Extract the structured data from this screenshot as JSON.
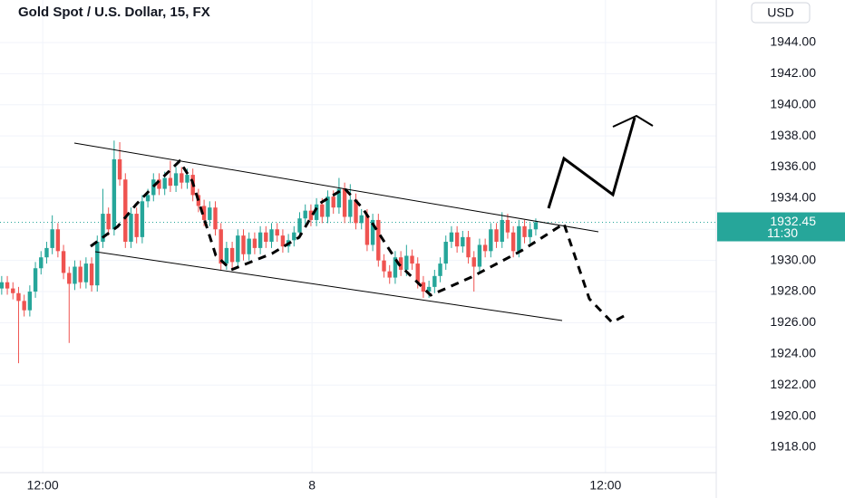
{
  "chart_data": {
    "type": "candlestick",
    "title": "Gold Spot / U.S. Dollar, 15, FX",
    "currency": "USD",
    "last_price_label": "1932.45",
    "countdown": "11:30",
    "up_color": "#26a69a",
    "down_color": "#ef5350",
    "open": [
      1928.2,
      1928.6,
      1928.2,
      1927.9,
      1927.4,
      1926.8,
      1928.0,
      1929.5,
      1930.2,
      1930.8,
      1932.0,
      1930.6,
      1929.2,
      1928.5,
      1929.6,
      1928.6,
      1929.8,
      1928.4,
      1931.2,
      1933.0,
      1932.0,
      1936.5,
      1935.2,
      1931.2,
      1933.0,
      1931.5,
      1933.8,
      1934.2,
      1935.2,
      1934.6,
      1935.3,
      1934.8,
      1935.6,
      1935.0,
      1935.5,
      1934.2,
      1933.5,
      1932.6,
      1933.4,
      1932.0,
      1929.8,
      1930.8,
      1929.9,
      1931.6,
      1930.4,
      1931.4,
      1930.8,
      1931.8,
      1931.2,
      1932.0,
      1931.6,
      1930.9,
      1931.3,
      1931.8,
      1932.7,
      1933.2,
      1932.6,
      1933.6,
      1932.8,
      1934.1,
      1933.4,
      1934.6,
      1932.8,
      1933.9,
      1932.4,
      1932.9,
      1931.0,
      1932.6,
      1930.0,
      1929.3,
      1928.9,
      1930.2,
      1929.4,
      1930.3,
      1929.8,
      1928.6,
      1928.0,
      1928.3,
      1929.0,
      1929.8,
      1931.2,
      1931.8,
      1930.9,
      1931.5,
      1930.2,
      1929.6,
      1931.0,
      1930.6,
      1932.0,
      1931.2,
      1932.6,
      1931.8,
      1930.6,
      1932.2,
      1931.5,
      1932.0
    ],
    "high": [
      1929.0,
      1929.0,
      1928.6,
      1928.3,
      1927.8,
      1928.4,
      1929.9,
      1930.6,
      1931.2,
      1932.9,
      1932.4,
      1931.0,
      1929.6,
      1930.0,
      1930.0,
      1930.2,
      1930.2,
      1931.6,
      1934.6,
      1933.4,
      1937.7,
      1937.6,
      1935.6,
      1933.4,
      1933.4,
      1934.2,
      1934.6,
      1935.6,
      1935.6,
      1935.7,
      1936.4,
      1936.0,
      1936.0,
      1935.9,
      1935.9,
      1934.6,
      1933.9,
      1933.8,
      1933.8,
      1932.4,
      1931.2,
      1931.2,
      1932.0,
      1932.0,
      1931.8,
      1931.8,
      1932.2,
      1932.2,
      1932.4,
      1932.4,
      1932.0,
      1931.7,
      1932.2,
      1933.1,
      1933.6,
      1933.6,
      1934.0,
      1934.0,
      1934.5,
      1934.5,
      1935.3,
      1935.0,
      1934.9,
      1934.3,
      1933.3,
      1933.3,
      1933.0,
      1933.0,
      1930.4,
      1929.7,
      1930.6,
      1930.6,
      1931.0,
      1930.7,
      1930.2,
      1929.0,
      1928.7,
      1929.4,
      1930.2,
      1931.6,
      1932.2,
      1932.2,
      1931.9,
      1931.9,
      1930.6,
      1931.4,
      1931.4,
      1932.4,
      1932.4,
      1933.1,
      1933.0,
      1932.2,
      1932.6,
      1932.6,
      1932.4,
      1932.7
    ],
    "low": [
      1927.8,
      1927.8,
      1927.5,
      1923.4,
      1926.4,
      1926.4,
      1927.6,
      1929.1,
      1929.8,
      1930.4,
      1930.2,
      1928.8,
      1924.7,
      1928.1,
      1928.2,
      1928.2,
      1928.0,
      1928.0,
      1930.8,
      1931.6,
      1931.6,
      1934.8,
      1930.8,
      1930.8,
      1931.1,
      1931.1,
      1933.4,
      1933.8,
      1934.2,
      1934.2,
      1934.4,
      1934.4,
      1934.6,
      1934.6,
      1933.8,
      1933.1,
      1932.2,
      1932.2,
      1931.6,
      1929.4,
      1929.4,
      1929.5,
      1929.5,
      1930.0,
      1930.0,
      1930.4,
      1930.4,
      1930.8,
      1930.8,
      1931.2,
      1930.5,
      1930.5,
      1930.9,
      1931.4,
      1932.3,
      1932.2,
      1932.2,
      1932.4,
      1932.4,
      1933.0,
      1933.0,
      1932.4,
      1932.4,
      1932.0,
      1932.0,
      1930.6,
      1930.6,
      1929.6,
      1928.9,
      1928.5,
      1928.5,
      1929.0,
      1929.0,
      1929.4,
      1928.2,
      1927.6,
      1927.6,
      1927.9,
      1928.6,
      1929.4,
      1930.8,
      1930.5,
      1930.5,
      1929.8,
      1928.0,
      1929.2,
      1930.2,
      1930.2,
      1930.8,
      1930.8,
      1931.4,
      1930.2,
      1930.2,
      1931.1,
      1931.1,
      1931.6
    ],
    "close": [
      1928.6,
      1928.2,
      1927.9,
      1927.4,
      1926.8,
      1928.0,
      1929.5,
      1930.2,
      1930.8,
      1932.0,
      1930.6,
      1929.2,
      1928.5,
      1929.6,
      1928.6,
      1929.8,
      1928.4,
      1931.2,
      1933.0,
      1932.0,
      1936.5,
      1935.2,
      1931.2,
      1933.0,
      1931.5,
      1933.8,
      1934.2,
      1935.2,
      1934.6,
      1935.3,
      1934.8,
      1935.6,
      1935.0,
      1935.5,
      1934.2,
      1933.5,
      1932.6,
      1933.4,
      1932.0,
      1929.8,
      1930.8,
      1929.9,
      1931.6,
      1930.4,
      1931.4,
      1930.8,
      1931.8,
      1931.2,
      1932.0,
      1931.6,
      1930.9,
      1931.3,
      1931.8,
      1932.7,
      1933.2,
      1932.6,
      1933.6,
      1932.8,
      1934.1,
      1933.4,
      1934.6,
      1932.8,
      1933.9,
      1932.4,
      1932.9,
      1931.0,
      1932.6,
      1930.0,
      1929.3,
      1928.9,
      1930.2,
      1929.4,
      1930.3,
      1929.8,
      1928.6,
      1928.0,
      1928.3,
      1929.0,
      1929.8,
      1931.2,
      1931.8,
      1930.9,
      1931.5,
      1930.2,
      1929.6,
      1931.0,
      1930.6,
      1932.0,
      1931.2,
      1932.6,
      1931.8,
      1930.6,
      1932.2,
      1931.5,
      1932.0,
      1932.45
    ],
    "xlim": [
      -0.3,
      127.1
    ],
    "xticks": [
      {
        "value": 7.3,
        "label": "12:00"
      },
      {
        "value": 55.2,
        "label": "8"
      },
      {
        "value": 107.4,
        "label": "12:00"
      }
    ],
    "ylim": [
      1916.37,
      1946.73
    ],
    "yticks": [
      {
        "value": 1918,
        "label": "1918.00"
      },
      {
        "value": 1920,
        "label": "1920.00"
      },
      {
        "value": 1922,
        "label": "1922.00"
      },
      {
        "value": 1924,
        "label": "1924.00"
      },
      {
        "value": 1926,
        "label": "1926.00"
      },
      {
        "value": 1928,
        "label": "1928.00"
      },
      {
        "value": 1930,
        "label": "1930.00"
      },
      {
        "value": 1932,
        "label": "1932.00"
      },
      {
        "value": 1934,
        "label": "1934.00"
      },
      {
        "value": 1936,
        "label": "1936.00"
      },
      {
        "value": 1938,
        "label": "1938.00"
      },
      {
        "value": 1940,
        "label": "1940.00"
      },
      {
        "value": 1942,
        "label": "1942.00"
      },
      {
        "value": 1944,
        "label": "1944.00"
      }
    ],
    "grid": true
  }
}
